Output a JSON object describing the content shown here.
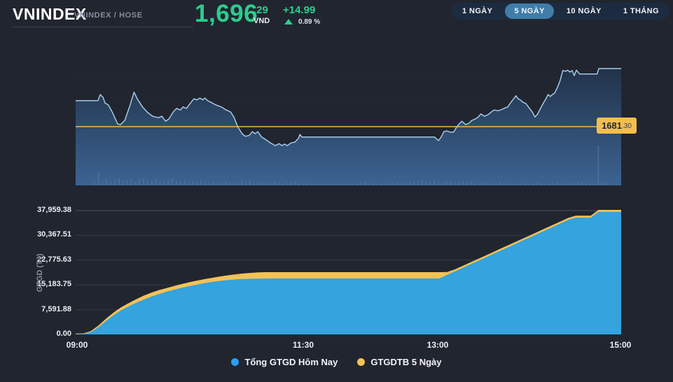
{
  "header": {
    "symbol": "VNINDEX",
    "exchange_label": "VNINDEX / HOSE",
    "price_int": "1,696",
    "price_dec": ".29",
    "currency": "VND",
    "change": "+14.99",
    "change_pct": "0.89 %",
    "up_color": "#2bce8d"
  },
  "ranges": {
    "buttons": [
      {
        "label": "1 NGÀY",
        "active": false
      },
      {
        "label": "5 NGÀY",
        "active": true
      },
      {
        "label": "10 NGÀY",
        "active": false
      },
      {
        "label": "1 THÁNG",
        "active": false
      }
    ],
    "active_color": "#3f7da8"
  },
  "reference_tag": {
    "main": "1681",
    "dec": ".30"
  },
  "legend": {
    "items": [
      {
        "label": "Tổng GTGD Hôm Nay",
        "color": "#2b9ef2"
      },
      {
        "label": "GTGDTB 5 Ngày",
        "color": "#f5c257"
      }
    ]
  },
  "chart_data": [
    {
      "type": "line",
      "name": "VNINDEX intraday price",
      "x_axis": "session time 09:00–15:00 (fraction of session)",
      "reference_line": {
        "value": 1681.3,
        "color": "#eab94d",
        "label": "1681.30"
      },
      "line_color": "#a6c9e8",
      "fill_gradient": [
        "#223349",
        "#3c6392"
      ],
      "last_value": 1696.29,
      "points": [
        [
          0.0,
          1688.0
        ],
        [
          0.041,
          1688.0
        ],
        [
          0.045,
          1689.6
        ],
        [
          0.05,
          1688.9
        ],
        [
          0.054,
          1687.4
        ],
        [
          0.06,
          1686.9
        ],
        [
          0.067,
          1685.1
        ],
        [
          0.077,
          1682.0
        ],
        [
          0.082,
          1681.8
        ],
        [
          0.09,
          1682.9
        ],
        [
          0.099,
          1686.5
        ],
        [
          0.107,
          1690.2
        ],
        [
          0.113,
          1688.5
        ],
        [
          0.122,
          1686.5
        ],
        [
          0.131,
          1685.1
        ],
        [
          0.141,
          1684.0
        ],
        [
          0.152,
          1683.6
        ],
        [
          0.158,
          1684.0
        ],
        [
          0.165,
          1682.7
        ],
        [
          0.171,
          1683.3
        ],
        [
          0.179,
          1685.1
        ],
        [
          0.185,
          1686.0
        ],
        [
          0.192,
          1685.6
        ],
        [
          0.197,
          1686.4
        ],
        [
          0.203,
          1686.0
        ],
        [
          0.21,
          1687.3
        ],
        [
          0.217,
          1688.5
        ],
        [
          0.222,
          1688.2
        ],
        [
          0.228,
          1688.7
        ],
        [
          0.233,
          1688.2
        ],
        [
          0.237,
          1688.7
        ],
        [
          0.242,
          1688.0
        ],
        [
          0.248,
          1687.6
        ],
        [
          0.257,
          1686.9
        ],
        [
          0.267,
          1686.4
        ],
        [
          0.276,
          1685.6
        ],
        [
          0.284,
          1685.1
        ],
        [
          0.29,
          1683.8
        ],
        [
          0.297,
          1681.3
        ],
        [
          0.305,
          1679.5
        ],
        [
          0.311,
          1678.8
        ],
        [
          0.318,
          1679.0
        ],
        [
          0.324,
          1680.0
        ],
        [
          0.329,
          1679.5
        ],
        [
          0.334,
          1680.0
        ],
        [
          0.341,
          1678.6
        ],
        [
          0.348,
          1678.0
        ],
        [
          0.357,
          1677.1
        ],
        [
          0.366,
          1676.4
        ],
        [
          0.373,
          1676.9
        ],
        [
          0.378,
          1676.4
        ],
        [
          0.383,
          1676.8
        ],
        [
          0.388,
          1676.4
        ],
        [
          0.395,
          1677.1
        ],
        [
          0.402,
          1677.3
        ],
        [
          0.409,
          1678.4
        ],
        [
          0.411,
          1679.3
        ],
        [
          0.415,
          1678.6
        ],
        [
          0.658,
          1678.6
        ],
        [
          0.665,
          1677.7
        ],
        [
          0.67,
          1678.6
        ],
        [
          0.675,
          1680.0
        ],
        [
          0.68,
          1680.2
        ],
        [
          0.686,
          1679.9
        ],
        [
          0.693,
          1679.9
        ],
        [
          0.698,
          1681.1
        ],
        [
          0.703,
          1682.0
        ],
        [
          0.708,
          1682.7
        ],
        [
          0.715,
          1681.8
        ],
        [
          0.721,
          1682.2
        ],
        [
          0.726,
          1682.9
        ],
        [
          0.733,
          1683.3
        ],
        [
          0.738,
          1683.8
        ],
        [
          0.743,
          1684.6
        ],
        [
          0.749,
          1684.0
        ],
        [
          0.756,
          1684.4
        ],
        [
          0.762,
          1685.1
        ],
        [
          0.767,
          1685.6
        ],
        [
          0.774,
          1685.4
        ],
        [
          0.779,
          1685.6
        ],
        [
          0.785,
          1686.0
        ],
        [
          0.792,
          1686.4
        ],
        [
          0.798,
          1687.6
        ],
        [
          0.803,
          1688.5
        ],
        [
          0.807,
          1689.3
        ],
        [
          0.811,
          1688.5
        ],
        [
          0.815,
          1688.2
        ],
        [
          0.82,
          1687.6
        ],
        [
          0.825,
          1687.3
        ],
        [
          0.83,
          1686.4
        ],
        [
          0.837,
          1685.1
        ],
        [
          0.842,
          1683.8
        ],
        [
          0.847,
          1684.6
        ],
        [
          0.852,
          1686.0
        ],
        [
          0.857,
          1687.3
        ],
        [
          0.862,
          1688.5
        ],
        [
          0.866,
          1689.6
        ],
        [
          0.87,
          1689.1
        ],
        [
          0.874,
          1689.6
        ],
        [
          0.878,
          1690.0
        ],
        [
          0.883,
          1691.4
        ],
        [
          0.888,
          1693.2
        ],
        [
          0.893,
          1695.8
        ],
        [
          0.898,
          1695.6
        ],
        [
          0.902,
          1695.9
        ],
        [
          0.906,
          1695.4
        ],
        [
          0.91,
          1695.8
        ],
        [
          0.914,
          1694.5
        ],
        [
          0.918,
          1695.9
        ],
        [
          0.924,
          1694.9
        ],
        [
          0.956,
          1694.9
        ],
        [
          0.959,
          1696.3
        ],
        [
          1.0,
          1696.3
        ]
      ]
    },
    {
      "type": "bar",
      "name": "intraday mini volume bars (relative px heights)",
      "bar_color": "#5e7fa3",
      "values": [
        6,
        20,
        7,
        9,
        6,
        8,
        10,
        7,
        6,
        9,
        5,
        8,
        10,
        6,
        7,
        9,
        5,
        6,
        8,
        11,
        6,
        5,
        7,
        4,
        6,
        5,
        7,
        4,
        3,
        5,
        4,
        3,
        6,
        4,
        3,
        5,
        7,
        4,
        6,
        3,
        4,
        5,
        3,
        4,
        6,
        5,
        3,
        4,
        5,
        6,
        4,
        3,
        3,
        4,
        2,
        3,
        2,
        3,
        2,
        2,
        3,
        4,
        3,
        2,
        3,
        4,
        5,
        3,
        4,
        3,
        2,
        3,
        4,
        3,
        5,
        4,
        3,
        4,
        5,
        6,
        8,
        6,
        5,
        7,
        5,
        4,
        6,
        5,
        4,
        5,
        6,
        4,
        5,
        3,
        4,
        5,
        4,
        3,
        4,
        5,
        3,
        4,
        2,
        3,
        4,
        3,
        2,
        3,
        4,
        3,
        2,
        4,
        3,
        5,
        4,
        3,
        4,
        3,
        4,
        5,
        4,
        3,
        4,
        57,
        5,
        4
      ]
    },
    {
      "type": "area",
      "name": "cumulative trading value (GTGD)",
      "title": "",
      "xlabel": "",
      "ylabel": "GTGD (Tỷ)",
      "x_tick_labels": [
        "09:00",
        "11:30",
        "13:00",
        "15:00"
      ],
      "y_tick_labels": [
        "0.00",
        "7,591.88",
        "15,183.75",
        "22,775.63",
        "30,367.51",
        "37,959.38"
      ],
      "ylim": [
        0,
        40288
      ],
      "y_top_gridline": 37959.38,
      "grid": "horizontal",
      "x_step_minutes": 5,
      "x_start": "09:00",
      "x_end": "15:00",
      "series": [
        {
          "name": "GTGDTB 5 Ngày",
          "color": "#f5c257",
          "values": [
            250,
            300,
            1000,
            2700,
            4800,
            6700,
            8300,
            9600,
            10800,
            11900,
            12800,
            13600,
            14200,
            14850,
            15450,
            16000,
            16500,
            16950,
            17350,
            17750,
            18100,
            18400,
            18650,
            18850,
            19000,
            19080,
            19090,
            19090,
            19090,
            19090,
            19090,
            19090,
            19090,
            19090,
            19090,
            19090,
            19090,
            19090,
            19090,
            19090,
            19090,
            19090,
            19090,
            19090,
            19090,
            19090,
            19090,
            19090,
            19090,
            19100,
            19900,
            20930,
            21980,
            23040,
            24090,
            25150,
            26200,
            27260,
            28310,
            29370,
            30420,
            31480,
            32530,
            33590,
            34640,
            35700,
            36400,
            36400,
            36400,
            38180,
            38180,
            38180,
            38180
          ]
        },
        {
          "name": "Tổng GTGD Hôm Nay",
          "color": "#34a3de",
          "values": [
            100,
            150,
            700,
            2200,
            4100,
            5900,
            7400,
            8600,
            9700,
            10700,
            11600,
            12400,
            13100,
            13700,
            14300,
            14800,
            15300,
            15700,
            16100,
            16400,
            16650,
            16850,
            16980,
            17060,
            17110,
            17140,
            17160,
            17160,
            17160,
            17160,
            17160,
            17160,
            17160,
            17160,
            17160,
            17160,
            17160,
            17160,
            17160,
            17160,
            17160,
            17160,
            17160,
            17160,
            17160,
            17160,
            17160,
            17160,
            17160,
            18220,
            19270,
            20330,
            21380,
            22440,
            23490,
            24550,
            25600,
            26660,
            27710,
            28770,
            29820,
            30880,
            31930,
            32990,
            34040,
            35100,
            35820,
            35820,
            35820,
            37600,
            37600,
            37600,
            37600
          ]
        }
      ]
    }
  ]
}
